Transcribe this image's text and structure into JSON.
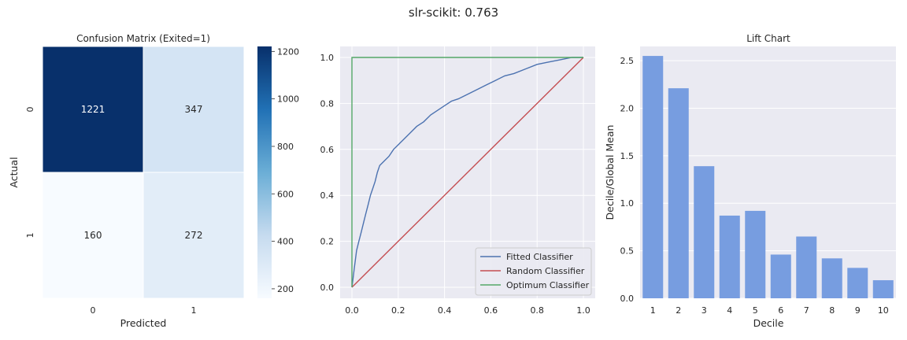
{
  "figure": {
    "suptitle": "slr-scikit: 0.763"
  },
  "chart_data": [
    {
      "type": "heatmap",
      "title": "Confusion Matrix (Exited=1)",
      "xlabel": "Predicted",
      "ylabel": "Actual",
      "x_categories": [
        "0",
        "1"
      ],
      "y_categories": [
        "0",
        "1"
      ],
      "values": [
        [
          1221,
          347
        ],
        [
          160,
          272
        ]
      ],
      "colormap": "Blues",
      "colorbar": {
        "range": [
          160,
          1221
        ],
        "ticks": [
          200,
          400,
          600,
          800,
          1000,
          1200
        ]
      }
    },
    {
      "type": "line",
      "title": "",
      "xlabel": "",
      "ylabel": "",
      "xlim": [
        0,
        1
      ],
      "ylim": [
        0,
        1
      ],
      "xticks": [
        "0.0",
        "0.2",
        "0.4",
        "0.6",
        "0.8",
        "1.0"
      ],
      "yticks": [
        "0.0",
        "0.2",
        "0.4",
        "0.6",
        "0.8",
        "1.0"
      ],
      "grid": true,
      "legend_position": "lower-right",
      "series": [
        {
          "name": "Fitted Classifier",
          "color": "#4c72b0",
          "points": [
            [
              0,
              0
            ],
            [
              0.005,
              0.04
            ],
            [
              0.01,
              0.08
            ],
            [
              0.015,
              0.12
            ],
            [
              0.02,
              0.16
            ],
            [
              0.03,
              0.2
            ],
            [
              0.04,
              0.24
            ],
            [
              0.05,
              0.28
            ],
            [
              0.06,
              0.32
            ],
            [
              0.07,
              0.36
            ],
            [
              0.08,
              0.4
            ],
            [
              0.09,
              0.43
            ],
            [
              0.1,
              0.46
            ],
            [
              0.11,
              0.5
            ],
            [
              0.12,
              0.53
            ],
            [
              0.14,
              0.55
            ],
            [
              0.16,
              0.57
            ],
            [
              0.18,
              0.6
            ],
            [
              0.2,
              0.62
            ],
            [
              0.22,
              0.64
            ],
            [
              0.25,
              0.67
            ],
            [
              0.28,
              0.7
            ],
            [
              0.31,
              0.72
            ],
            [
              0.34,
              0.75
            ],
            [
              0.37,
              0.77
            ],
            [
              0.4,
              0.79
            ],
            [
              0.43,
              0.81
            ],
            [
              0.46,
              0.82
            ],
            [
              0.5,
              0.84
            ],
            [
              0.54,
              0.86
            ],
            [
              0.58,
              0.88
            ],
            [
              0.62,
              0.9
            ],
            [
              0.66,
              0.92
            ],
            [
              0.7,
              0.93
            ],
            [
              0.75,
              0.95
            ],
            [
              0.8,
              0.97
            ],
            [
              0.85,
              0.98
            ],
            [
              0.9,
              0.99
            ],
            [
              0.95,
              1.0
            ],
            [
              1.0,
              1.0
            ]
          ]
        },
        {
          "name": "Random Classifier",
          "color": "#c44e52",
          "points": [
            [
              0,
              0
            ],
            [
              1,
              1
            ]
          ]
        },
        {
          "name": "Optimum Classifier",
          "color": "#55a868",
          "points": [
            [
              0,
              0
            ],
            [
              0,
              1
            ],
            [
              1,
              1
            ]
          ]
        }
      ]
    },
    {
      "type": "bar",
      "title": "Lift Chart",
      "xlabel": "Decile",
      "ylabel": "Decile/Global Mean",
      "categories": [
        "1",
        "2",
        "3",
        "4",
        "5",
        "6",
        "7",
        "8",
        "9",
        "10"
      ],
      "values": [
        2.55,
        2.21,
        1.39,
        0.87,
        0.92,
        0.46,
        0.65,
        0.42,
        0.32,
        0.19
      ],
      "ylim": [
        0,
        2.65
      ],
      "yticks": [
        "0.0",
        "0.5",
        "1.0",
        "1.5",
        "2.0",
        "2.5"
      ],
      "color": "#779de0",
      "grid": true
    }
  ]
}
